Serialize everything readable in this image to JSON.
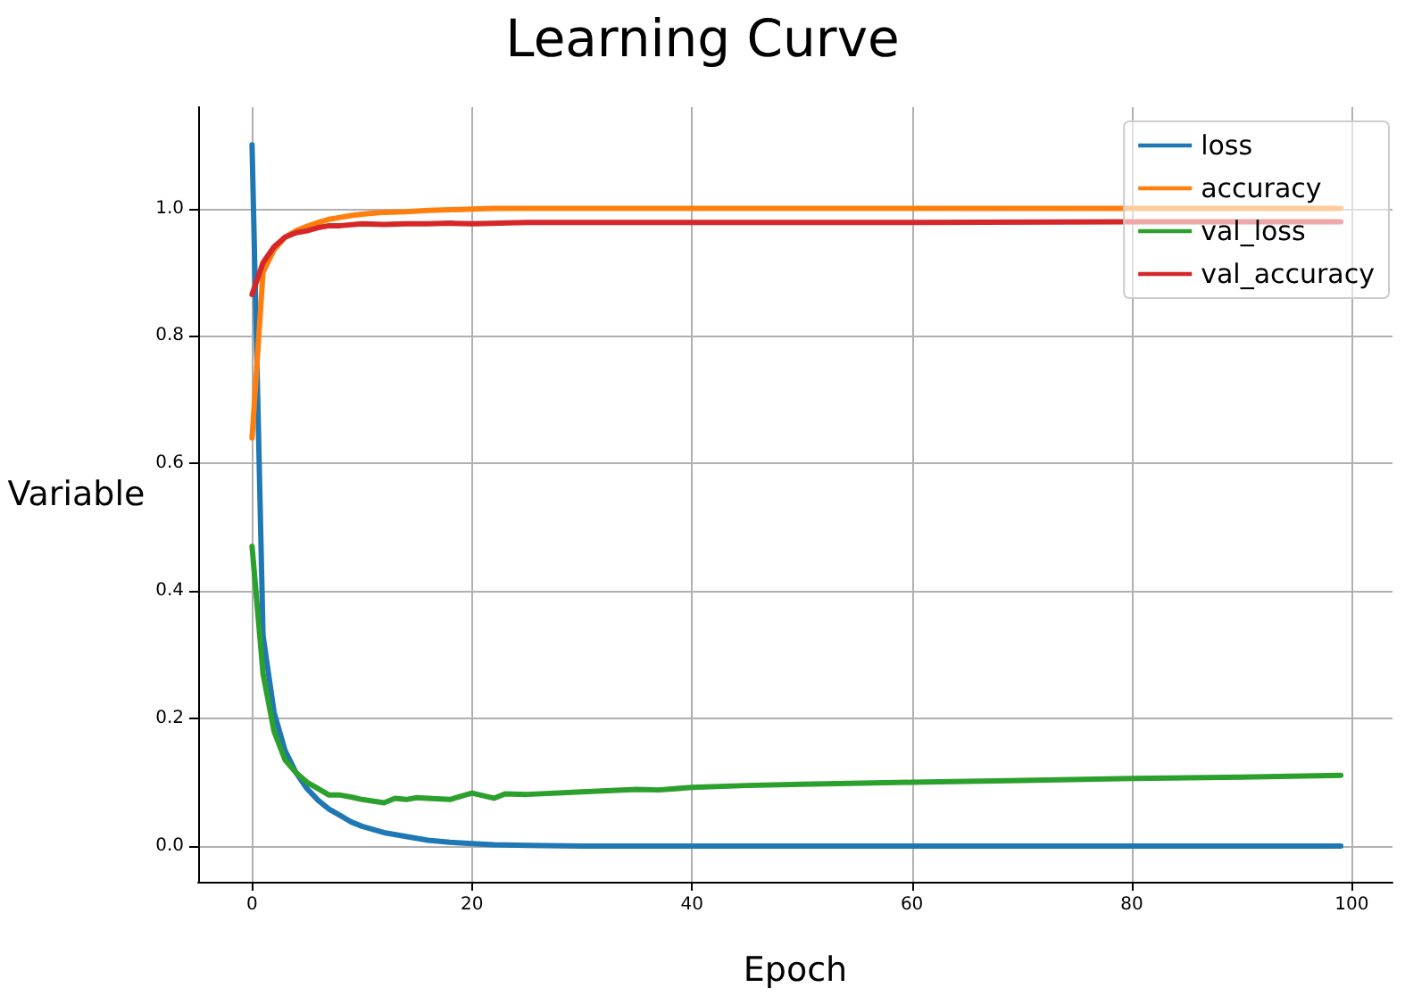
{
  "chart_data": {
    "type": "line",
    "title": "Learning Curve",
    "xlabel": "Epoch",
    "ylabel": "Variable",
    "xlim": [
      -4.9,
      103.7
    ],
    "ylim": [
      -0.056,
      1.159
    ],
    "xticks": [
      0,
      20,
      40,
      60,
      80,
      100
    ],
    "yticks": [
      {
        "value": 0,
        "label": "0.0"
      },
      0.2,
      0.4,
      0.6,
      0.8,
      {
        "value": 1,
        "label": "1.0"
      }
    ],
    "grid": true,
    "legend": "top right",
    "marker": "none",
    "line_style": "solid",
    "series": [
      {
        "name": "loss",
        "color": "#1f77b4",
        "x": [
          0,
          1,
          2,
          3,
          4,
          5,
          6,
          7,
          8,
          9,
          10,
          12,
          14,
          16,
          18,
          20,
          22,
          25,
          30,
          40,
          60,
          80,
          99
        ],
        "values": [
          1.1,
          0.33,
          0.21,
          0.15,
          0.115,
          0.09,
          0.072,
          0.058,
          0.048,
          0.038,
          0.031,
          0.021,
          0.015,
          0.009,
          0.006,
          0.004,
          0.002,
          0.001,
          0,
          0,
          0,
          0,
          0
        ]
      },
      {
        "name": "accuracy",
        "color": "#ff7f0e",
        "x": [
          0,
          1,
          2,
          3,
          4,
          5,
          6,
          7,
          8,
          9,
          10,
          12,
          14,
          16,
          18,
          20,
          22,
          30,
          60,
          99
        ],
        "values": [
          0.64,
          0.9,
          0.935,
          0.955,
          0.965,
          0.972,
          0.978,
          0.983,
          0.986,
          0.989,
          0.991,
          0.994,
          0.995,
          0.997,
          0.998,
          0.999,
          1.0,
          1.0,
          1.0,
          1.0
        ]
      },
      {
        "name": "val_loss",
        "color": "#2ca02c",
        "x": [
          0,
          1,
          2,
          3,
          4,
          5,
          6,
          7,
          8,
          9,
          10,
          12,
          13,
          14,
          15,
          16,
          18,
          20,
          22,
          23,
          25,
          30,
          35,
          37,
          40,
          45,
          50,
          60,
          70,
          80,
          90,
          99
        ],
        "values": [
          0.47,
          0.27,
          0.18,
          0.135,
          0.115,
          0.1,
          0.09,
          0.08,
          0.08,
          0.077,
          0.073,
          0.068,
          0.075,
          0.073,
          0.076,
          0.075,
          0.073,
          0.083,
          0.075,
          0.082,
          0.081,
          0.085,
          0.089,
          0.088,
          0.092,
          0.095,
          0.097,
          0.1,
          0.103,
          0.106,
          0.108,
          0.111
        ]
      },
      {
        "name": "val_accuracy",
        "color": "#d62728",
        "x": [
          0,
          1,
          2,
          3,
          4,
          5,
          6,
          7,
          8,
          10,
          12,
          14,
          16,
          18,
          20,
          25,
          30,
          40,
          60,
          80,
          99
        ],
        "values": [
          0.865,
          0.915,
          0.94,
          0.955,
          0.962,
          0.965,
          0.97,
          0.973,
          0.973,
          0.976,
          0.975,
          0.976,
          0.976,
          0.977,
          0.976,
          0.978,
          0.978,
          0.978,
          0.978,
          0.979,
          0.979
        ]
      }
    ]
  }
}
